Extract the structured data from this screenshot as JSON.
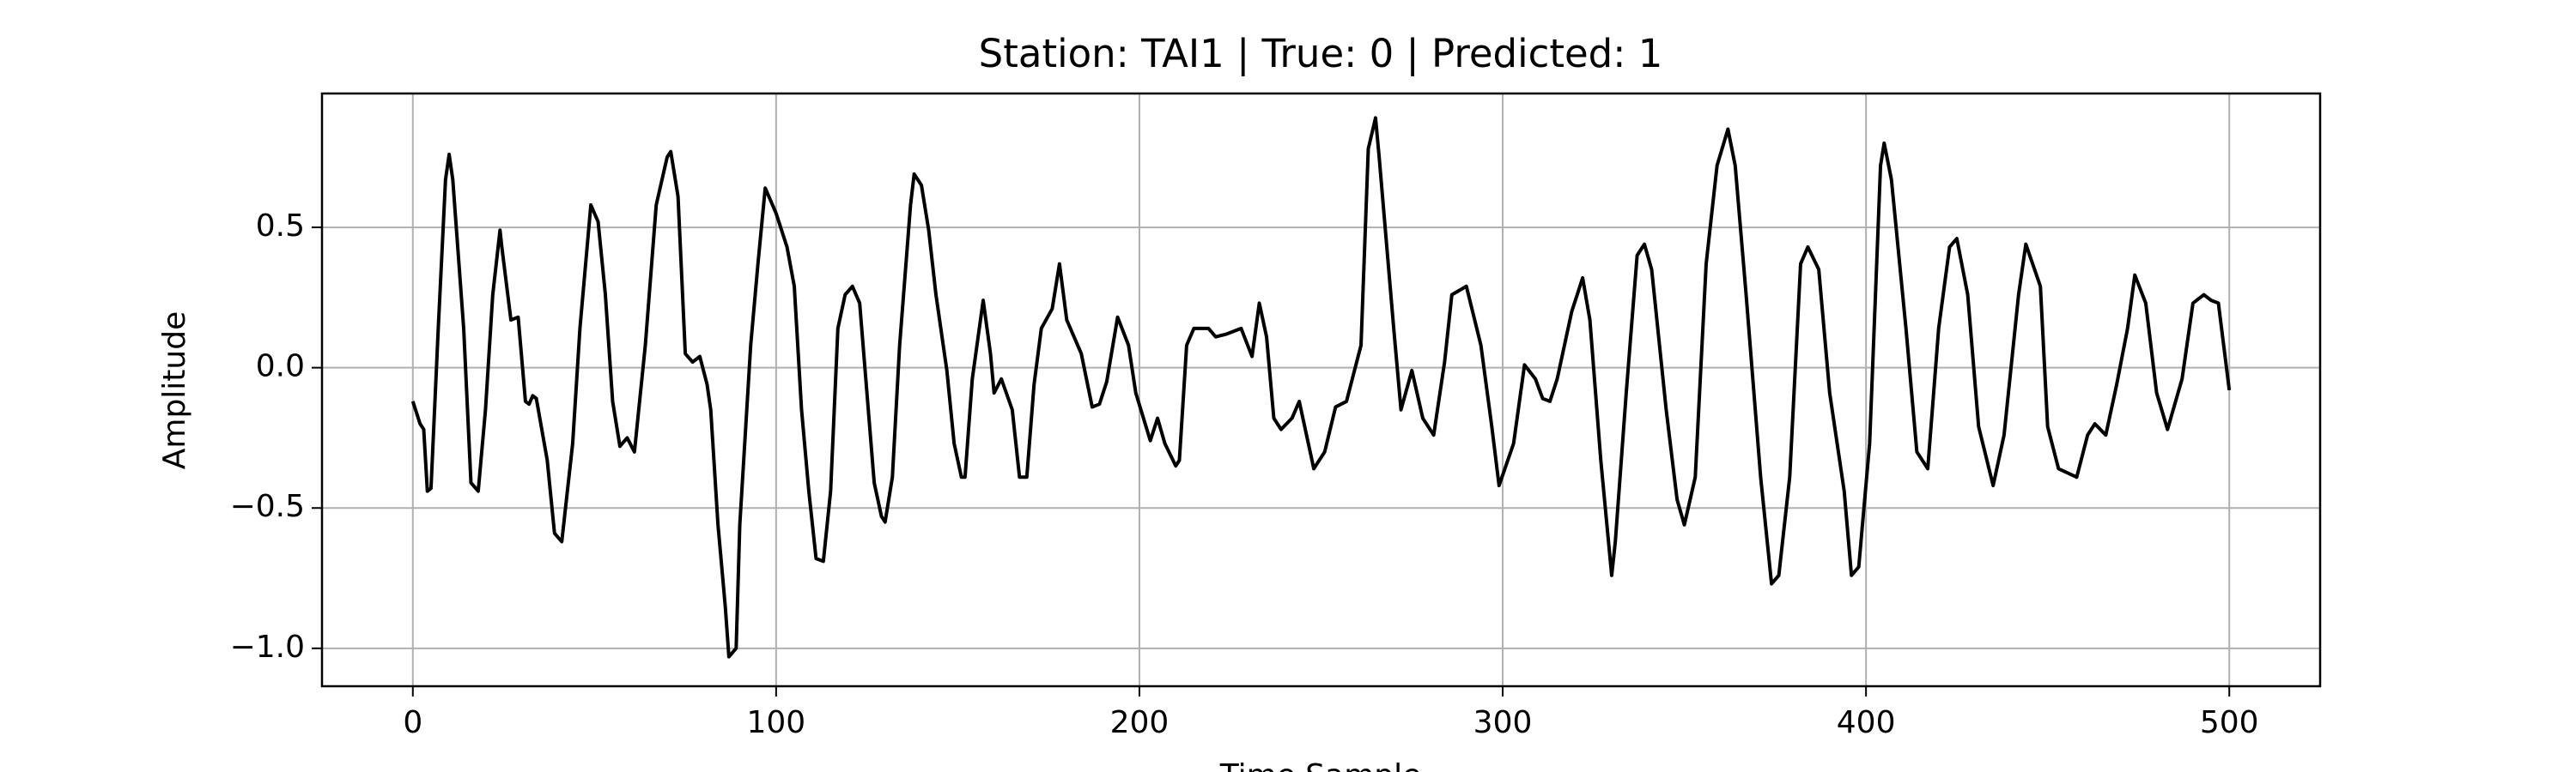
{
  "chart_data": {
    "type": "line",
    "title": "Station: TAI1 | True: 0 | Predicted: 1",
    "x_label": "Time Sample",
    "y_label": "Amplitude",
    "color": "#000000",
    "grid": true,
    "xlim": [
      -25,
      525
    ],
    "ylim": [
      -1.135,
      0.977
    ],
    "xticks": [
      0,
      100,
      200,
      300,
      400,
      500
    ],
    "yticks": [
      {
        "value": -1.0,
        "label": "−1.0"
      },
      {
        "value": -0.5,
        "label": "−0.5"
      },
      {
        "value": 0.0,
        "label": "0.0"
      },
      0.5
    ],
    "x": [
      0,
      2,
      3,
      4,
      5,
      7,
      9,
      10,
      11,
      14,
      16,
      18,
      20,
      22,
      24,
      24.5,
      27,
      29,
      31,
      32,
      33,
      34,
      37,
      39,
      41,
      44,
      46,
      49,
      51,
      53,
      55,
      57,
      59,
      61,
      64,
      67,
      70,
      71,
      73,
      75,
      77,
      79,
      81,
      82,
      84,
      86,
      87,
      89,
      90,
      93,
      95,
      97,
      100,
      103,
      105,
      107,
      109,
      111,
      113,
      115,
      117,
      119,
      121,
      123,
      125,
      127,
      129,
      130,
      132,
      134,
      137,
      138,
      140,
      142,
      144,
      147,
      149,
      151,
      152,
      154,
      157,
      159,
      160,
      162,
      165,
      167,
      169,
      171,
      173,
      176,
      178,
      180,
      184,
      187,
      189,
      191,
      194,
      197,
      199,
      203,
      205,
      207,
      210,
      211,
      213,
      215,
      219,
      221,
      224,
      228,
      231,
      233,
      235,
      237,
      239,
      242,
      244,
      247,
      248,
      251,
      254,
      257,
      261,
      263,
      265,
      266,
      270,
      272,
      275,
      278,
      281,
      284,
      286,
      290,
      294,
      297,
      299,
      303,
      306,
      309,
      311,
      313,
      315,
      319,
      322,
      324,
      327,
      330,
      331,
      334,
      337,
      339,
      341,
      345,
      348,
      350,
      353,
      356,
      359,
      362,
      364,
      367,
      371,
      374,
      376,
      379,
      382,
      384,
      387,
      390,
      394,
      396,
      398,
      401,
      404,
      405,
      407,
      411,
      414,
      417,
      420,
      423,
      425,
      428,
      431,
      435,
      438,
      442,
      444,
      448,
      450,
      453,
      458,
      461,
      463,
      466,
      469,
      472,
      474,
      477,
      480,
      483,
      487,
      490,
      493,
      495,
      497,
      500
    ],
    "values": [
      -0.12,
      -0.2,
      -0.22,
      -0.44,
      -0.43,
      0.14,
      0.67,
      0.76,
      0.67,
      0.14,
      -0.41,
      -0.44,
      -0.15,
      0.26,
      0.49,
      0.43,
      0.17,
      0.18,
      -0.12,
      -0.13,
      -0.1,
      -0.11,
      -0.33,
      -0.59,
      -0.62,
      -0.27,
      0.14,
      0.58,
      0.52,
      0.26,
      -0.12,
      -0.28,
      -0.25,
      -0.3,
      0.08,
      0.58,
      0.75,
      0.77,
      0.61,
      0.05,
      0.02,
      0.04,
      -0.06,
      -0.15,
      -0.56,
      -0.85,
      -1.03,
      -1.0,
      -0.56,
      0.08,
      0.37,
      0.64,
      0.55,
      0.43,
      0.29,
      -0.15,
      -0.44,
      -0.68,
      -0.69,
      -0.44,
      0.14,
      0.26,
      0.29,
      0.23,
      -0.09,
      -0.41,
      -0.53,
      -0.55,
      -0.39,
      0.08,
      0.58,
      0.69,
      0.65,
      0.49,
      0.26,
      -0.01,
      -0.27,
      -0.39,
      -0.39,
      -0.04,
      0.24,
      0.05,
      -0.09,
      -0.04,
      -0.15,
      -0.39,
      -0.39,
      -0.06,
      0.14,
      0.21,
      0.37,
      0.17,
      0.05,
      -0.14,
      -0.13,
      -0.05,
      0.18,
      0.08,
      -0.09,
      -0.26,
      -0.18,
      -0.27,
      -0.35,
      -0.33,
      0.08,
      0.14,
      0.14,
      0.11,
      0.12,
      0.14,
      0.04,
      0.23,
      0.11,
      -0.18,
      -0.22,
      -0.18,
      -0.12,
      -0.3,
      -0.36,
      -0.3,
      -0.14,
      -0.12,
      0.08,
      0.78,
      0.89,
      0.75,
      0.14,
      -0.15,
      -0.01,
      -0.18,
      -0.24,
      0.02,
      0.26,
      0.29,
      0.08,
      -0.21,
      -0.42,
      -0.27,
      0.01,
      -0.04,
      -0.11,
      -0.12,
      -0.04,
      0.2,
      0.32,
      0.17,
      -0.33,
      -0.74,
      -0.62,
      -0.09,
      0.4,
      0.44,
      0.35,
      -0.15,
      -0.47,
      -0.56,
      -0.39,
      0.37,
      0.72,
      0.85,
      0.72,
      0.26,
      -0.39,
      -0.77,
      -0.74,
      -0.39,
      0.37,
      0.43,
      0.35,
      -0.09,
      -0.44,
      -0.74,
      -0.71,
      -0.27,
      0.72,
      0.8,
      0.67,
      0.14,
      -0.3,
      -0.36,
      0.14,
      0.43,
      0.46,
      0.26,
      -0.21,
      -0.42,
      -0.24,
      0.26,
      0.44,
      0.29,
      -0.21,
      -0.36,
      -0.39,
      -0.24,
      -0.2,
      -0.24,
      -0.06,
      0.14,
      0.33,
      0.23,
      -0.09,
      -0.22,
      -0.04,
      0.23,
      0.26,
      0.24,
      0.23,
      -0.08
    ]
  }
}
